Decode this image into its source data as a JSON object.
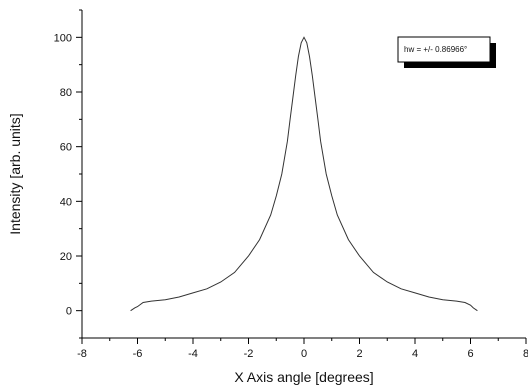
{
  "chart_data": {
    "type": "line",
    "title": "",
    "xlabel": "X Axis angle [degrees]",
    "ylabel": "Intensity [arb. units]",
    "xlim": [
      -8,
      8
    ],
    "ylim": [
      -10,
      110
    ],
    "x_ticks": [
      -8,
      -6,
      -4,
      -2,
      0,
      2,
      4,
      6,
      8
    ],
    "x_tick_labels": [
      "-8",
      "-6",
      "-4",
      "-2",
      "0",
      "2",
      "4",
      "6",
      "8"
    ],
    "y_ticks": [
      0,
      20,
      40,
      60,
      80,
      100
    ],
    "y_tick_labels": [
      "0",
      "20",
      "40",
      "60",
      "80",
      "100"
    ],
    "grid": false,
    "legend": false,
    "line_color": "#333333",
    "annotation": {
      "text": "hw = +/- 0.86966°",
      "position": "top-right"
    },
    "series": [
      {
        "x": [
          -6.25,
          -6.1,
          -6.0,
          -5.8,
          -5.5,
          -5.0,
          -4.5,
          -4.0,
          -3.5,
          -3.0,
          -2.5,
          -2.0,
          -1.6,
          -1.2,
          -1.0,
          -0.8,
          -0.6,
          -0.5,
          -0.4,
          -0.3,
          -0.2,
          -0.1,
          0.0,
          0.1,
          0.2,
          0.3,
          0.4,
          0.5,
          0.6,
          0.8,
          1.0,
          1.2,
          1.6,
          2.0,
          2.5,
          3.0,
          3.5,
          4.0,
          4.5,
          5.0,
          5.5,
          5.8,
          6.0,
          6.1,
          6.25
        ],
        "y": [
          0,
          1,
          1.5,
          3,
          3.5,
          4,
          5,
          6.5,
          8,
          10.5,
          14,
          20,
          26,
          35,
          42,
          50,
          62,
          70,
          78,
          86,
          93,
          98,
          100,
          98,
          93,
          86,
          78,
          70,
          62,
          50,
          42,
          35,
          26,
          20,
          14,
          10.5,
          8,
          6.5,
          5,
          4,
          3.5,
          3,
          2,
          1,
          0
        ]
      }
    ]
  }
}
